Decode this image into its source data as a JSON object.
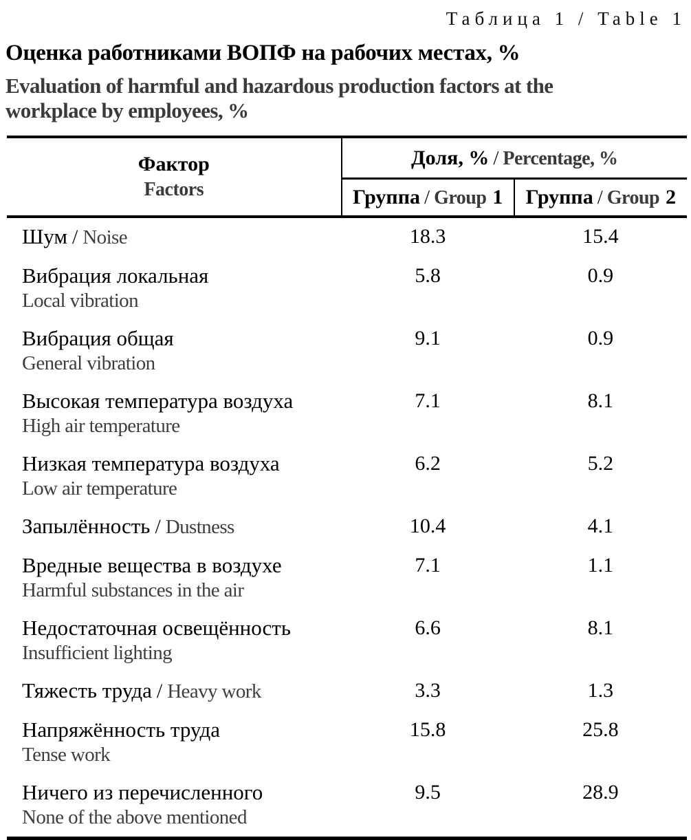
{
  "caption": "Таблица 1 / Table 1",
  "title_ru": "Оценка работниками ВОПФ на рабочих местах, %",
  "title_en": "Evaluation of harmful and hazardous production factors at the workplace by employees, %",
  "table": {
    "sep": "/",
    "header": {
      "factor_ru": "Фактор",
      "factor_en": "Factors",
      "share_ru": "Доля, %",
      "share_en": "Percentage, %",
      "groups": [
        {
          "ru": "Группа",
          "en": "Group",
          "num": "1"
        },
        {
          "ru": "Группа",
          "en": "Group",
          "num": "2"
        }
      ]
    },
    "rows": [
      {
        "ru": "Шум",
        "en": "Noise",
        "inline": true,
        "g1": "18.3",
        "g2": "15.4"
      },
      {
        "ru": "Вибрация локальная",
        "en": "Local vibration",
        "inline": false,
        "g1": "5.8",
        "g2": "0.9"
      },
      {
        "ru": "Вибрация общая",
        "en": "General vibration",
        "inline": false,
        "g1": "9.1",
        "g2": "0.9"
      },
      {
        "ru": "Высокая температура воздуха",
        "en": "High air temperature",
        "inline": false,
        "g1": "7.1",
        "g2": "8.1"
      },
      {
        "ru": "Низкая температура воздуха",
        "en": "Low air temperature",
        "inline": false,
        "g1": "6.2",
        "g2": "5.2"
      },
      {
        "ru": "Запылённость",
        "en": "Dustness",
        "inline": true,
        "g1": "10.4",
        "g2": "4.1"
      },
      {
        "ru": "Вредные вещества в воздухе",
        "en": "Harmful substances in the air",
        "inline": false,
        "g1": "7.1",
        "g2": "1.1"
      },
      {
        "ru": "Недостаточная освещённость",
        "en": "Insufficient lighting",
        "inline": false,
        "g1": "6.6",
        "g2": "8.1"
      },
      {
        "ru": "Тяжесть труда",
        "en": "Heavy work",
        "inline": true,
        "g1": "3.3",
        "g2": "1.3"
      },
      {
        "ru": "Напряжённость труда",
        "en": "Tense work",
        "inline": false,
        "g1": "15.8",
        "g2": "25.8"
      },
      {
        "ru": "Ничего из перечисленного",
        "en": "None of the above mentioned",
        "inline": false,
        "g1": "9.5",
        "g2": "28.9"
      }
    ]
  }
}
